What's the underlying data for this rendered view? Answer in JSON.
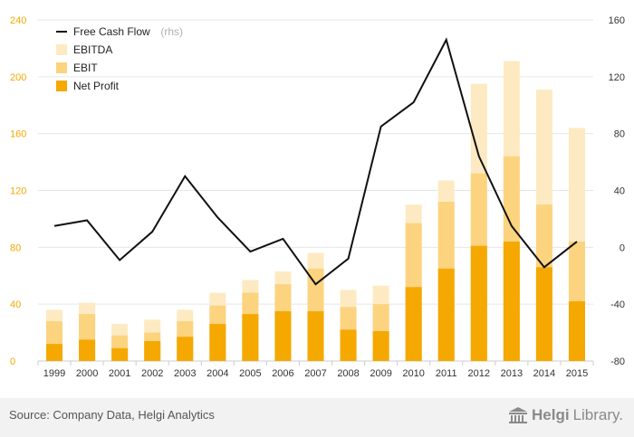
{
  "chart_data": {
    "type": "bar",
    "stacked_overlay": true,
    "categories": [
      "1999",
      "2000",
      "2001",
      "2002",
      "2003",
      "2004",
      "2005",
      "2006",
      "2007",
      "2008",
      "2009",
      "2010",
      "2011",
      "2012",
      "2013",
      "2014",
      "2015"
    ],
    "series": [
      {
        "name": "EBITDA",
        "axis": "left",
        "color": "#fdeac2",
        "values": [
          36,
          41,
          26,
          29,
          36,
          48,
          57,
          63,
          76,
          50,
          53,
          110,
          127,
          195,
          211,
          191,
          164
        ]
      },
      {
        "name": "EBIT",
        "axis": "left",
        "color": "#fcd37f",
        "values": [
          28,
          33,
          18,
          20,
          28,
          39,
          48,
          54,
          65,
          38,
          40,
          97,
          112,
          132,
          144,
          110,
          84
        ]
      },
      {
        "name": "Net Profit",
        "axis": "left",
        "color": "#f5a800",
        "values": [
          12,
          15,
          9,
          14,
          17,
          26,
          33,
          35,
          35,
          22,
          21,
          52,
          65,
          81,
          84,
          66,
          42
        ]
      },
      {
        "name": "Free Cash Flow",
        "suffix": "(rhs)",
        "type": "line",
        "axis": "right",
        "color": "#111111",
        "values": [
          15,
          19,
          -9,
          11,
          50,
          21,
          -3,
          6,
          -26,
          -8,
          85,
          102,
          146,
          64,
          15,
          -14,
          4
        ]
      }
    ],
    "left_axis": {
      "ylim": [
        0,
        240
      ],
      "ticks": [
        0,
        40,
        80,
        120,
        160,
        200,
        240
      ],
      "color": "#f5a800"
    },
    "right_axis": {
      "ylim": [
        -80,
        160
      ],
      "ticks": [
        -80,
        -40,
        0,
        40,
        80,
        120,
        160
      ],
      "color": "#111111"
    },
    "legend": "top-left",
    "grid": "horizontal"
  },
  "footer": {
    "source": "Source: Company Data, Helgi Analytics",
    "brand_name": "Helgi",
    "brand_suffix": "Library.",
    "logo_icon": "building-icon"
  }
}
